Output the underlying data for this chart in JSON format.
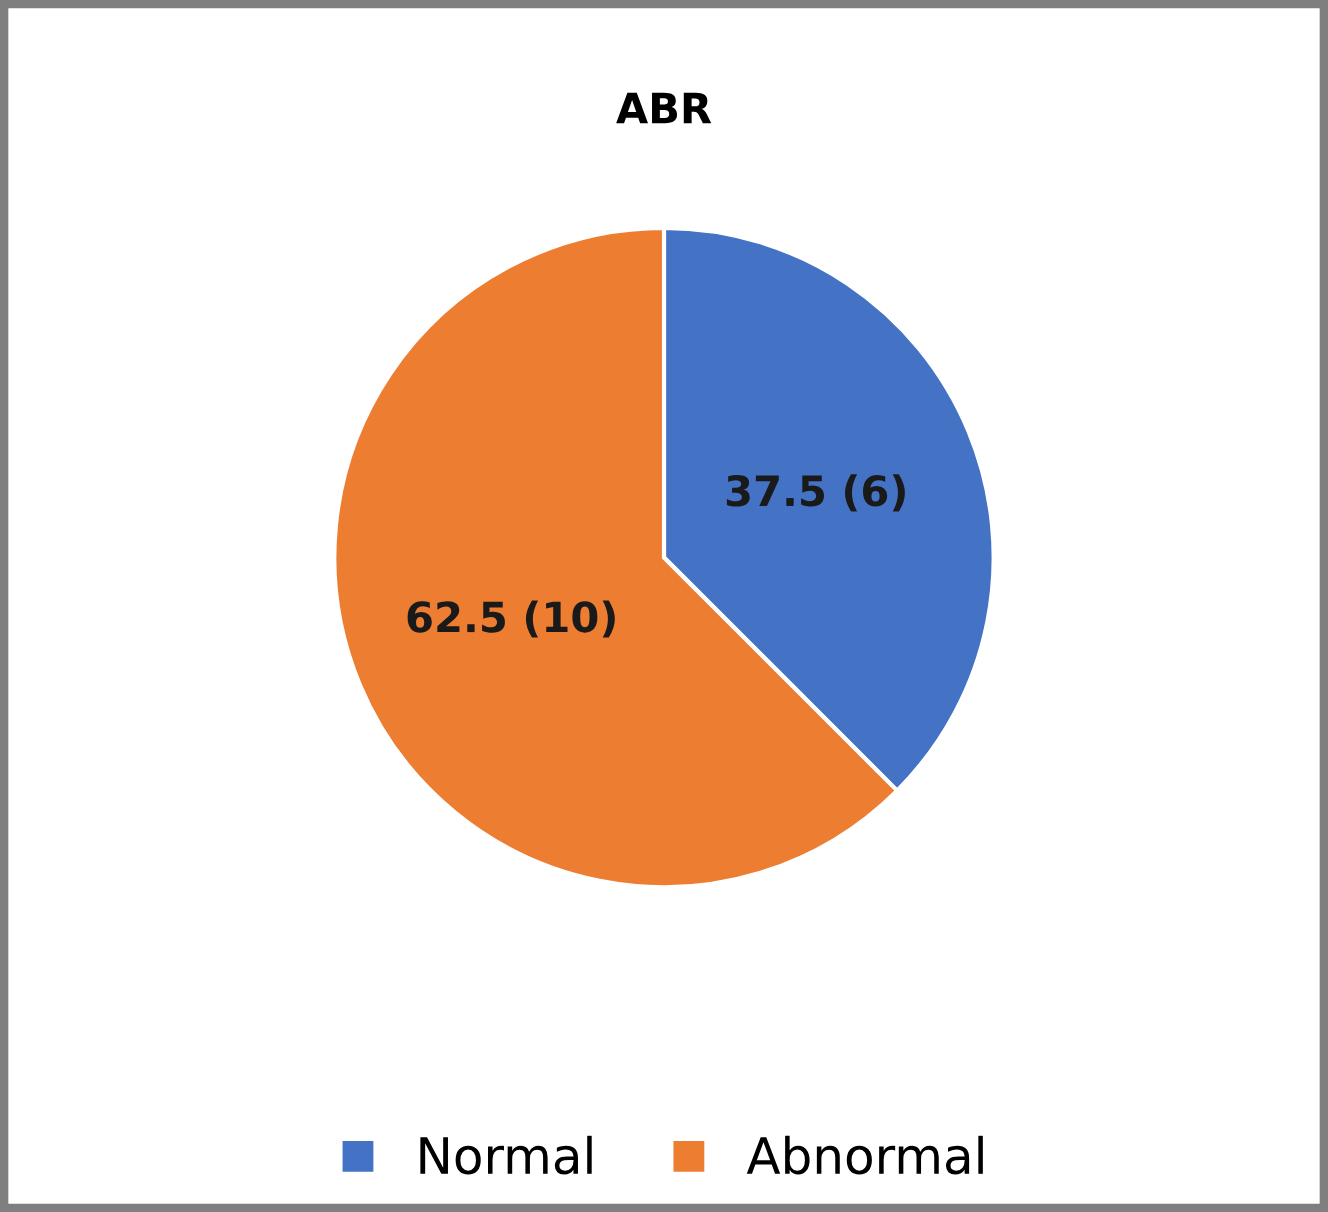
{
  "chart_data": {
    "type": "pie",
    "title": "ABR",
    "categories": [
      "Normal",
      "Abnormal"
    ],
    "values": [
      37.5,
      62.5
    ],
    "value_labels": [
      "37.5 (6)",
      "62.5 (10)"
    ],
    "colors": [
      "#4472c4",
      "#ed7d31"
    ],
    "legend": "bottom"
  }
}
